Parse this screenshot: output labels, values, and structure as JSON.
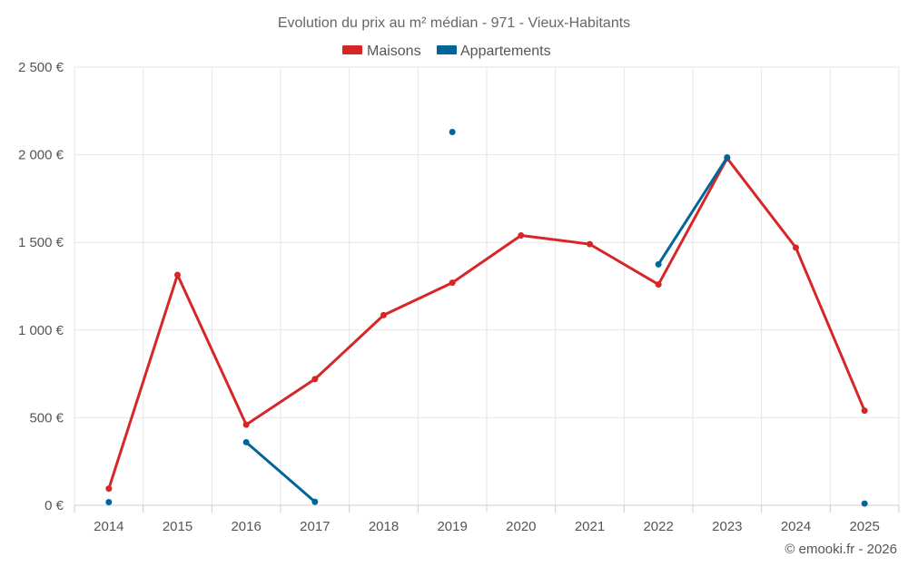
{
  "chart_data": {
    "type": "line",
    "title": "Evolution du prix au m² médian - 971 - Vieux-Habitants",
    "categories": [
      "2014",
      "2015",
      "2016",
      "2017",
      "2018",
      "2019",
      "2020",
      "2021",
      "2022",
      "2023",
      "2024",
      "2025"
    ],
    "y_ticks": [
      "0 €",
      "500 €",
      "1 000 €",
      "1 500 €",
      "2 000 €",
      "2 500 €"
    ],
    "ylim": [
      0,
      2500
    ],
    "series": [
      {
        "name": "Maisons",
        "color": "#d62728",
        "values": [
          95,
          1315,
          460,
          720,
          1085,
          1270,
          1540,
          1490,
          1260,
          1980,
          1470,
          540
        ]
      },
      {
        "name": "Appartements",
        "color": "#006699",
        "values": [
          18,
          null,
          360,
          20,
          null,
          2130,
          null,
          null,
          1375,
          1985,
          null,
          10
        ]
      }
    ],
    "legend_position": "top-center",
    "credit": "© emooki.fr - 2026"
  }
}
